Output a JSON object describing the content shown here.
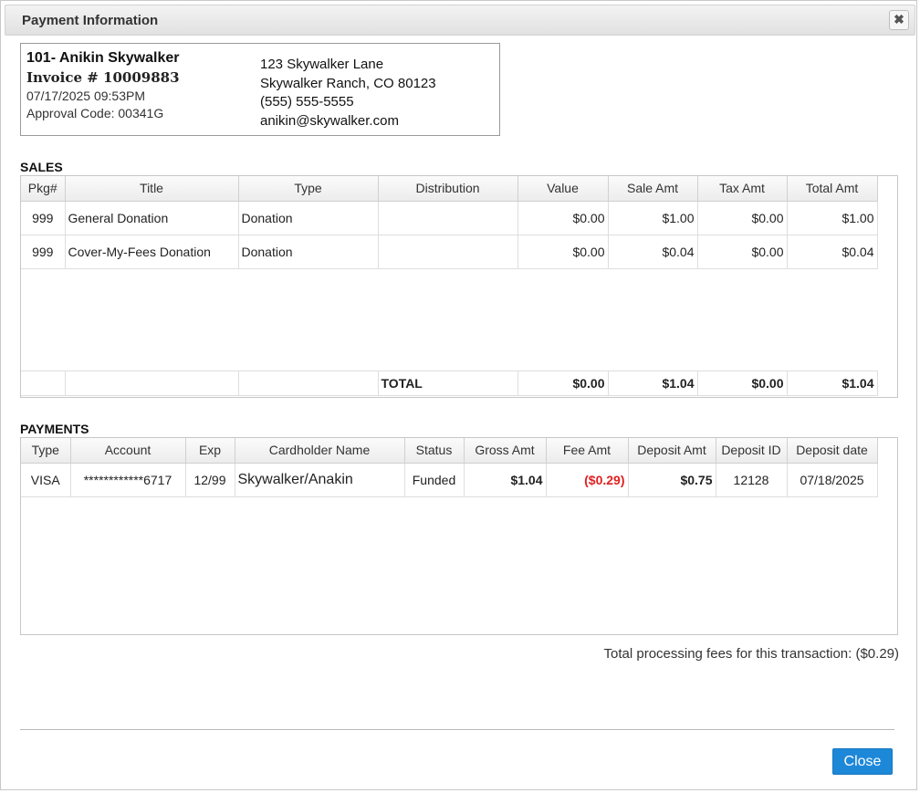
{
  "dialog": {
    "title": "Payment Information",
    "close_icon_glyph": "✖",
    "close_button_label": "Close"
  },
  "customer": {
    "name_line": "101- Anikin Skywalker",
    "invoice_line": "Invoice # 10009883",
    "datetime": "07/17/2025 09:53PM",
    "approval_line": "Approval Code: 00341G",
    "address_line1": "123 Skywalker Lane",
    "address_line2": "Skywalker Ranch, CO 80123",
    "phone": "(555) 555-5555",
    "email": "anikin@skywalker.com"
  },
  "sales": {
    "label": "SALES",
    "columns": [
      "Pkg#",
      "Title",
      "Type",
      "Distribution",
      "Value",
      "Sale Amt",
      "Tax Amt",
      "Total Amt"
    ],
    "rows": [
      {
        "pkg": "999",
        "title": "General Donation",
        "type": "Donation",
        "distribution": "",
        "value": "$0.00",
        "sale_amt": "$1.00",
        "tax_amt": "$0.00",
        "total_amt": "$1.00"
      },
      {
        "pkg": "999",
        "title": "Cover-My-Fees Donation",
        "type": "Donation",
        "distribution": "",
        "value": "$0.00",
        "sale_amt": "$0.04",
        "tax_amt": "$0.00",
        "total_amt": "$0.04"
      }
    ],
    "total": {
      "label": "TOTAL",
      "value": "$0.00",
      "sale_amt": "$1.04",
      "tax_amt": "$0.00",
      "total_amt": "$1.04"
    }
  },
  "payments": {
    "label": "PAYMENTS",
    "columns": [
      "Type",
      "Account",
      "Exp",
      "Cardholder Name",
      "Status",
      "Gross Amt",
      "Fee Amt",
      "Deposit Amt",
      "Deposit ID",
      "Deposit date"
    ],
    "rows": [
      {
        "type": "VISA",
        "account": "************6717",
        "exp": "12/99",
        "cardholder": "Skywalker/Anakin",
        "status": "Funded",
        "gross_amt": "$1.04",
        "fee_amt": "($0.29)",
        "deposit_amt": "$0.75",
        "deposit_id": "12128",
        "deposit_date": "07/18/2025"
      }
    ]
  },
  "fees_note": "Total processing fees for this transaction: ($0.29)",
  "colors": {
    "accent": "#1e88d8",
    "negative": "#e02020"
  }
}
